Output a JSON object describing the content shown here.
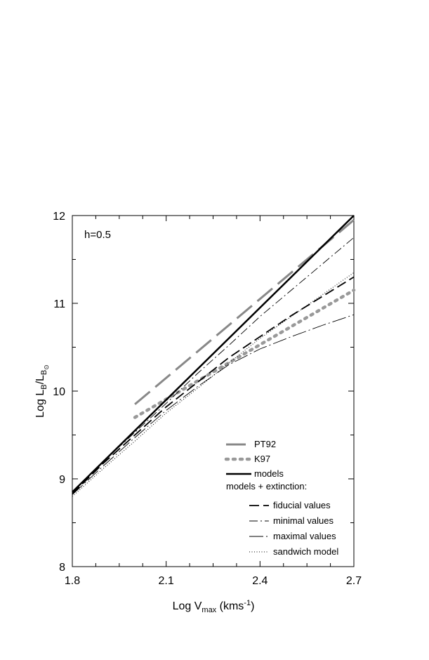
{
  "chart_data": {
    "type": "line",
    "annotation": "h=0.5",
    "xlabel": {
      "main": "Log V",
      "sub": "max",
      "unit_pre": " (kms",
      "unit_sup": "-1",
      "unit_post": ")"
    },
    "ylabel": {
      "main": "Log L",
      "sub1": "B",
      "mid": "/L",
      "sub2": "B",
      "sub3": "⊙"
    },
    "xlim": [
      1.8,
      2.7
    ],
    "ylim": [
      8,
      12
    ],
    "xticks": [
      1.8,
      2.1,
      2.4,
      2.7
    ],
    "xtick_labels": [
      "1.8",
      "2.1",
      "2.4",
      "2.7"
    ],
    "yticks": [
      8,
      9,
      10,
      11,
      12
    ],
    "ytick_labels": [
      "8",
      "9",
      "10",
      "11",
      "12"
    ],
    "grid": false,
    "legend_position": "bottom-right",
    "series": [
      {
        "name": "PT92",
        "color": "#888888",
        "style": "longdash-gray",
        "x": [
          2.0,
          2.7
        ],
        "y": [
          9.85,
          11.95
        ]
      },
      {
        "name": "K97",
        "color": "#999999",
        "style": "dotted-gray-thick",
        "x": [
          2.0,
          2.7
        ],
        "y": [
          9.7,
          11.15
        ]
      },
      {
        "name": "models",
        "color": "#000000",
        "style": "solid-thick",
        "x": [
          1.8,
          2.7
        ],
        "y": [
          8.85,
          12.0
        ]
      },
      {
        "name": "fiducial values",
        "color": "#000000",
        "style": "dash",
        "x": [
          1.8,
          1.9,
          2.0,
          2.1,
          2.2,
          2.3,
          2.4,
          2.5,
          2.6,
          2.7
        ],
        "y": [
          8.83,
          9.18,
          9.5,
          9.82,
          10.1,
          10.38,
          10.62,
          10.86,
          11.08,
          11.3
        ]
      },
      {
        "name": "minimal values",
        "color": "#000000",
        "style": "dashdot",
        "x": [
          1.8,
          1.9,
          2.0,
          2.1,
          2.2,
          2.3,
          2.4,
          2.5,
          2.6,
          2.7
        ],
        "y": [
          8.84,
          9.2,
          9.53,
          9.86,
          10.2,
          10.52,
          10.85,
          11.15,
          11.45,
          11.75
        ]
      },
      {
        "name": "maximal values",
        "color": "#000000",
        "style": "longdashdot",
        "x": [
          1.8,
          1.9,
          2.0,
          2.1,
          2.2,
          2.3,
          2.4,
          2.5,
          2.6,
          2.7
        ],
        "y": [
          8.82,
          9.15,
          9.47,
          9.78,
          10.05,
          10.3,
          10.48,
          10.62,
          10.75,
          10.87
        ]
      },
      {
        "name": "sandwich model",
        "color": "#000000",
        "style": "dots",
        "x": [
          1.8,
          1.9,
          2.0,
          2.1,
          2.2,
          2.3,
          2.4,
          2.5,
          2.6,
          2.7
        ],
        "y": [
          8.8,
          9.12,
          9.43,
          9.75,
          10.03,
          10.32,
          10.6,
          10.85,
          11.1,
          11.35
        ]
      }
    ],
    "legend": {
      "items": [
        "PT92",
        "K97",
        "models"
      ],
      "subheading": "models + extinction:",
      "subitems": [
        "fiducial values",
        "minimal values",
        "maximal values",
        "sandwich model"
      ]
    }
  }
}
